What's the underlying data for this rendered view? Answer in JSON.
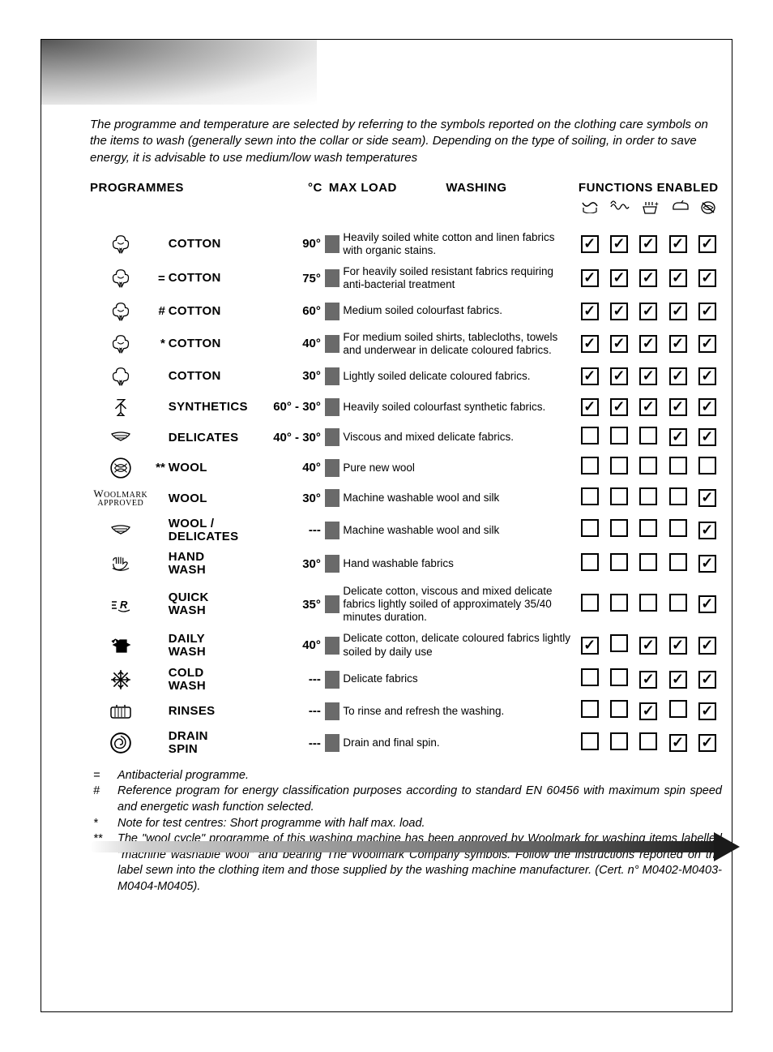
{
  "intro_text": "The programme and temperature are selected by referring to the symbols reported on the clothing care symbols on the items to wash (generally sewn into the collar or side seam). Depending on the type of soiling, in order to save energy, it is advisable to use medium/low wash temperatures",
  "headers": {
    "programmes": "PROGRAMMES",
    "temp": "°C",
    "max_load": "MAX LOAD",
    "washing": "WASHING",
    "functions_enabled": "FUNCTIONS ENABLED"
  },
  "function_icons": [
    "prewash-icon",
    "intensive-icon",
    "extra-rinse-icon",
    "easy-iron-icon",
    "no-spin-icon"
  ],
  "colors": {
    "load_bar": "#6a6a6a",
    "border": "#000000",
    "text": "#000000"
  },
  "programmes": [
    {
      "icon": "cotton",
      "prefix": "",
      "name": "COTTON",
      "temp": "90°",
      "desc": "Heavily soiled white cotton and linen fabrics with organic stains.",
      "fn": [
        true,
        true,
        true,
        true,
        true
      ]
    },
    {
      "icon": "cotton",
      "prefix": "=",
      "name": "COTTON",
      "temp": "75°",
      "desc": "For heavily soiled resistant fabrics requiring anti-bacterial treatment",
      "fn": [
        true,
        true,
        true,
        true,
        true
      ]
    },
    {
      "icon": "cotton",
      "prefix": "#",
      "name": "COTTON",
      "temp": "60°",
      "desc": "Medium soiled colourfast fabrics.",
      "fn": [
        true,
        true,
        true,
        true,
        true
      ]
    },
    {
      "icon": "cotton",
      "prefix": "*",
      "name": "COTTON",
      "temp": "40°",
      "desc": "For medium soiled shirts, tablecloths, towels and underwear in delicate coloured fabrics.",
      "fn": [
        true,
        true,
        true,
        true,
        true
      ]
    },
    {
      "icon": "cotton-outline",
      "prefix": "",
      "name": "COTTON",
      "temp": "30°",
      "desc": "Lightly soiled delicate coloured fabrics.",
      "fn": [
        true,
        true,
        true,
        true,
        true
      ]
    },
    {
      "icon": "synthetics",
      "prefix": "",
      "name": "SYNTHETICS",
      "temp": "60° - 30°",
      "desc": "Heavily soiled colourfast synthetic fabrics.",
      "fn": [
        true,
        true,
        true,
        true,
        true
      ]
    },
    {
      "icon": "delicates",
      "prefix": "",
      "name": "DELICATES",
      "temp": "40° - 30°",
      "desc": "Viscous and mixed delicate fabrics.",
      "fn": [
        false,
        false,
        false,
        true,
        true
      ]
    },
    {
      "icon": "wool",
      "prefix": "**",
      "name": "WOOL",
      "temp": "40°",
      "desc": "Pure new wool",
      "fn": [
        false,
        false,
        false,
        false,
        false
      ]
    },
    {
      "icon": "woolmark",
      "prefix": "",
      "name": "WOOL",
      "temp": "30°",
      "desc": "Machine washable wool and silk",
      "fn": [
        false,
        false,
        false,
        false,
        true
      ]
    },
    {
      "icon": "delicates",
      "prefix": "",
      "name": "WOOL / DELICATES",
      "temp": "---",
      "desc": "Machine washable wool and silk",
      "fn": [
        false,
        false,
        false,
        false,
        true
      ]
    },
    {
      "icon": "handwash",
      "prefix": "",
      "name": "HAND WASH",
      "temp": "30°",
      "desc": "Hand washable fabrics",
      "fn": [
        false,
        false,
        false,
        false,
        true
      ]
    },
    {
      "icon": "quickwash",
      "prefix": "",
      "name": "QUICK WASH",
      "temp": "35°",
      "desc": "Delicate cotton, viscous and mixed delicate fabrics lightly soiled of approximately 35/40 minutes duration.",
      "fn": [
        false,
        false,
        false,
        false,
        true
      ]
    },
    {
      "icon": "dailywash",
      "prefix": "",
      "name": "DAILY WASH",
      "temp": "40°",
      "desc": "Delicate cotton, delicate coloured fabrics lightly soiled by daily use",
      "fn": [
        true,
        false,
        true,
        true,
        true
      ]
    },
    {
      "icon": "coldwash",
      "prefix": "",
      "name": "COLD WASH",
      "temp": "---",
      "desc": "Delicate fabrics",
      "fn": [
        false,
        false,
        true,
        true,
        true
      ]
    },
    {
      "icon": "rinses",
      "prefix": "",
      "name": "RINSES",
      "temp": "---",
      "desc": "To rinse and refresh the washing.",
      "fn": [
        false,
        false,
        true,
        false,
        true
      ]
    },
    {
      "icon": "drainspin",
      "prefix": "",
      "name": "DRAIN SPIN",
      "temp": "---",
      "desc": "Drain and final spin.",
      "fn": [
        false,
        false,
        false,
        true,
        true
      ]
    }
  ],
  "footnotes": [
    {
      "sym": "=",
      "text": "Antibacterial programme."
    },
    {
      "sym": "#",
      "text": "Reference program for energy classification purposes according to standard EN 60456 with maximum spin speed and energetic wash function selected."
    },
    {
      "sym": "*",
      "text": "Note for test centres: Short programme with half max. load."
    },
    {
      "sym": "**",
      "text": "The \"wool cycle\" programme of this washing machine has been approved by Woolmark for washing items labelled \"machine washable wool\" and bearing The Woolmark Company symbols. Follow the instructions reported on the label sewn into the clothing item and those supplied by the washing machine manufacturer. (Cert. n° M0402-M0403-M0404-M0405)."
    }
  ],
  "woolmark_label": {
    "line1": "W",
    "line1b": "OOLMARK",
    "line2": "APPROVED"
  }
}
